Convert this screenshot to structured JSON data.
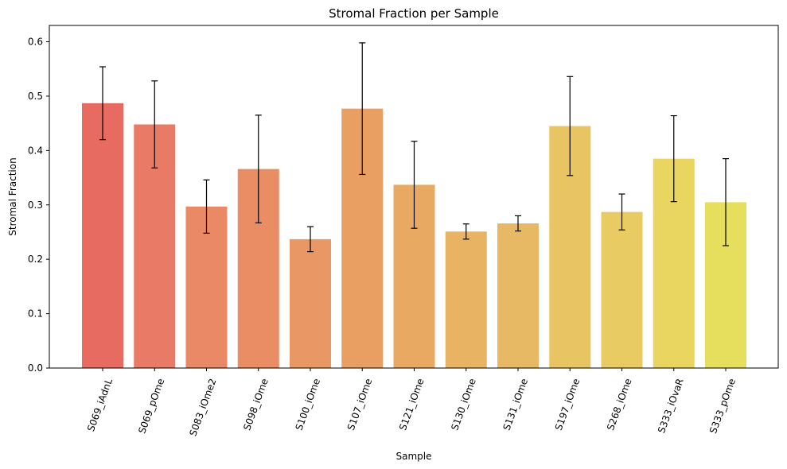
{
  "chart_data": {
    "type": "bar",
    "title": "Stromal Fraction per Sample",
    "xlabel": "Sample",
    "ylabel": "Stromal Fraction",
    "ylim": [
      0,
      0.63
    ],
    "yticks": [
      0.0,
      0.1,
      0.2,
      0.3,
      0.4,
      0.5,
      0.6
    ],
    "ytick_labels": [
      "0.0",
      "0.1",
      "0.2",
      "0.3",
      "0.4",
      "0.5",
      "0.6"
    ],
    "grid": false,
    "categories": [
      "S069_iAdnL",
      "S069_pOme",
      "S083_iOme2",
      "S098_iOme",
      "S100_iOme",
      "S107_iOme",
      "S121_iOme",
      "S130_iOme",
      "S131_iOme",
      "S197_iOme",
      "S268_iOme",
      "S333_iOvaR",
      "S333_pOme"
    ],
    "values": [
      0.487,
      0.448,
      0.297,
      0.366,
      0.237,
      0.477,
      0.337,
      0.251,
      0.266,
      0.445,
      0.287,
      0.385,
      0.305
    ],
    "errors": [
      0.067,
      0.08,
      0.049,
      0.099,
      0.023,
      0.121,
      0.08,
      0.014,
      0.014,
      0.091,
      0.033,
      0.079,
      0.08
    ],
    "colors": [
      "#e86b61",
      "#e97a65",
      "#e98965",
      "#e98d64",
      "#e99764",
      "#e89f61",
      "#e8aa62",
      "#e8b363",
      "#e8b964",
      "#e8c463",
      "#e8cb62",
      "#e8d660",
      "#e6df5e"
    ]
  }
}
